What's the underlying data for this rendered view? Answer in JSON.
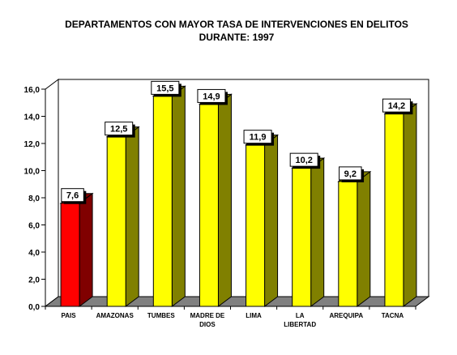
{
  "chart_data": {
    "type": "bar",
    "title": [
      "DEPARTAMENTOS CON MAYOR TASA DE INTERVENCIONES EN DELITOS",
      "DURANTE: 1997"
    ],
    "categories": [
      [
        "PAIS"
      ],
      [
        "AMAZONAS"
      ],
      [
        "TUMBES"
      ],
      [
        "MADRE DE",
        "DIOS"
      ],
      [
        "LIMA"
      ],
      [
        "LA",
        "LIBERTAD"
      ],
      [
        "AREQUIPA"
      ],
      [
        "TACNA"
      ]
    ],
    "values": [
      7.6,
      12.5,
      15.5,
      14.9,
      11.9,
      10.2,
      9.2,
      14.2
    ],
    "data_labels": [
      "7,6",
      "12,5",
      "15,5",
      "14,9",
      "11,9",
      "10,2",
      "9,2",
      "14,2"
    ],
    "ylim": [
      0,
      16
    ],
    "yticks": [
      "0,0",
      "2,0",
      "4,0",
      "6,0",
      "8,0",
      "10,0",
      "12,0",
      "14,0",
      "16,0"
    ],
    "xlabel": "",
    "ylabel": "",
    "grid": false,
    "legend": "none",
    "colors": {
      "highlight_front": "#ff0000",
      "highlight_side": "#800000",
      "bar_front": "#ffff00",
      "bar_side": "#808000",
      "floor": "#808080",
      "wall": "#ffffff"
    }
  }
}
